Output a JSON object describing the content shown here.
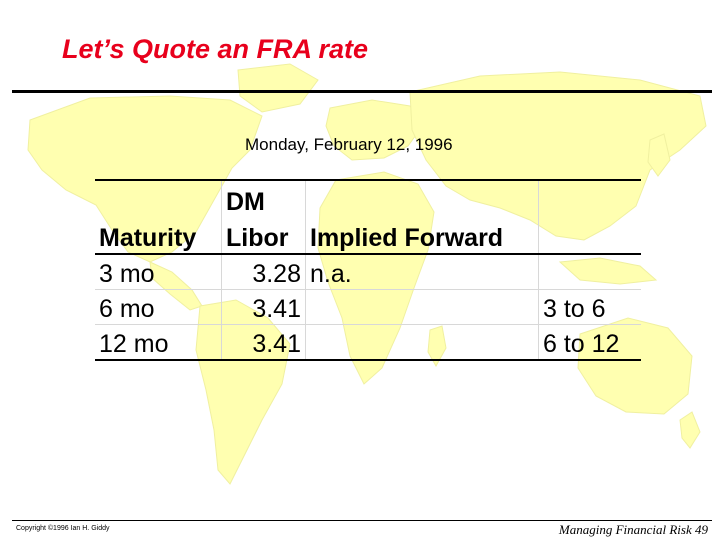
{
  "slide": {
    "title": "Let’s Quote an FRA rate",
    "date": "Monday, February 12, 1996",
    "colors": {
      "title": "#e8001c",
      "map": "#ffffb0"
    }
  },
  "table": {
    "header_top": [
      "",
      "DM",
      "",
      ""
    ],
    "header": [
      "Maturity",
      "Libor",
      "Implied Forward",
      ""
    ],
    "rows": [
      [
        "3 mo",
        "3.28",
        "n.a.",
        ""
      ],
      [
        "6 mo",
        "3.41",
        "",
        "3 to 6"
      ],
      [
        "12 mo",
        "3.41",
        "",
        "6 to 12"
      ]
    ]
  },
  "footer": {
    "copyright": "Copyright ©1996 Ian H. Giddy",
    "slide_ref": "Managing Financial Risk 49"
  }
}
